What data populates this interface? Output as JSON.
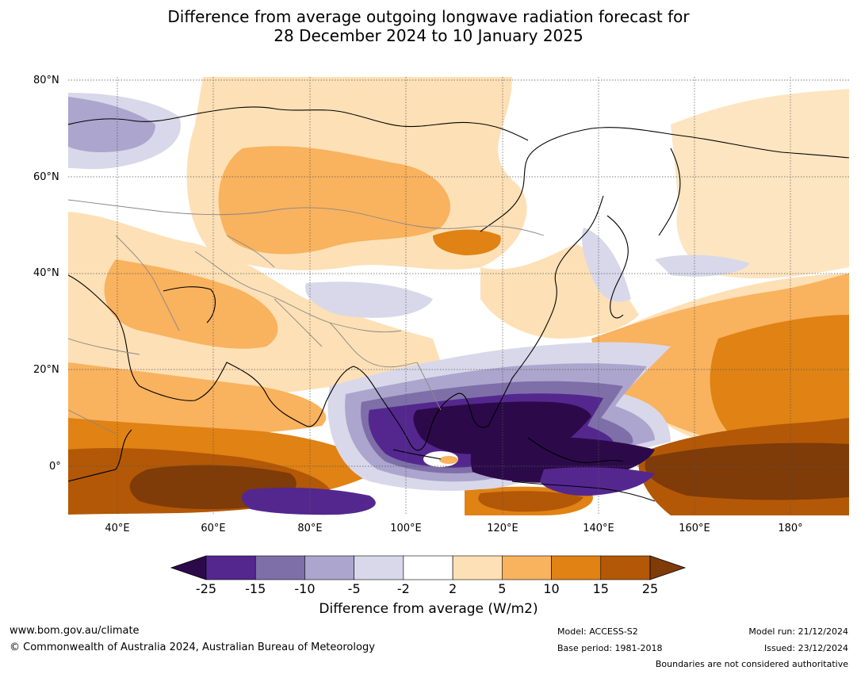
{
  "title_line1": "Difference from average outgoing longwave radiation forecast for",
  "title_line2": "28 December 2024 to 10 January 2025",
  "lat_labels": [
    "80°N",
    "60°N",
    "40°N",
    "20°N",
    "0°"
  ],
  "lon_labels": [
    "40°E",
    "60°E",
    "80°E",
    "100°E",
    "120°E",
    "140°E",
    "160°E",
    "180°"
  ],
  "colorbar": {
    "ticks": [
      "-25",
      "-15",
      "-10",
      "-5",
      "-2",
      "2",
      "5",
      "10",
      "15",
      "25"
    ],
    "label": "Difference from average (W/m2)",
    "colors": [
      "#2c0a4a",
      "#54278f",
      "#7e6fa8",
      "#aca5cd",
      "#d9d8ea",
      "#ffffff",
      "#fee0b6",
      "#f9b25e",
      "#e08214",
      "#b35806",
      "#7f3b08"
    ]
  },
  "footer": {
    "website": "www.bom.gov.au/climate",
    "copyright": "© Commonwealth of Australia 2024, Australian Bureau of Meteorology",
    "model": "Model: ACCESS-S2",
    "base_period": "Base period: 1981-2018",
    "model_run": "Model run: 21/12/2024",
    "issued": "Issued: 23/12/2024",
    "disclaimer": "Boundaries are not considered authoritative"
  }
}
